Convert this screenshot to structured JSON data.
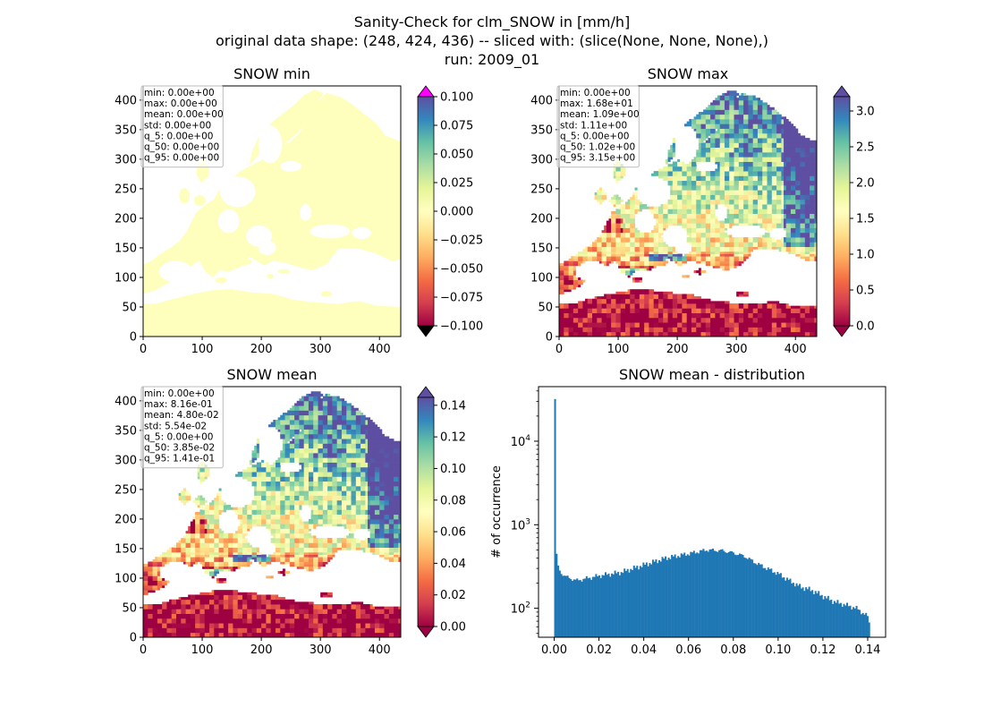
{
  "figure": {
    "title_lines": [
      "Sanity-Check for clm_SNOW in [mm/h]",
      "original data shape: (248, 424, 436) -- sliced with: (slice(None, None, None),)",
      "run: 2009_01"
    ]
  },
  "colors": {
    "land_pale": "#fefebd",
    "histogram_bar": "#1f77b4",
    "over_arrow_min": "#ff00ff",
    "under_arrow": "#000000",
    "spectral_low": "#9e0142",
    "spectral_high": "#5e4fa2"
  },
  "chart_data": [
    {
      "type": "heatmap",
      "title": "SNOW min",
      "colormap": "Spectral",
      "xlim": [
        0,
        436
      ],
      "ylim": [
        0,
        424
      ],
      "xticks": [
        0,
        100,
        200,
        300,
        400
      ],
      "yticks": [
        0,
        50,
        100,
        150,
        200,
        250,
        300,
        350,
        400
      ],
      "colorbar": {
        "range": [
          -0.1,
          0.1
        ],
        "ticks": [
          "0.100",
          "0.075",
          "0.050",
          "0.025",
          "0.000",
          "−0.025",
          "−0.050",
          "−0.075",
          "−0.100"
        ],
        "extend": "both"
      },
      "stats_box": [
        "min: 0.00e+00",
        "max: 0.00e+00",
        "mean: 0.00e+00",
        "std: 0.00e+00",
        "q_5: 0.00e+00",
        "q_50: 0.00e+00",
        "q_95: 0.00e+00"
      ],
      "field": "uniform_zero"
    },
    {
      "type": "heatmap",
      "title": "SNOW max",
      "colormap": "Spectral",
      "xlim": [
        0,
        436
      ],
      "ylim": [
        0,
        424
      ],
      "xticks": [
        0,
        100,
        200,
        300,
        400
      ],
      "yticks": [
        0,
        50,
        100,
        150,
        200,
        250,
        300,
        350,
        400
      ],
      "colorbar": {
        "range": [
          0,
          3.2
        ],
        "ticks": [
          "3.0",
          "2.5",
          "2.0",
          "1.5",
          "1.0",
          "0.5",
          "0.0"
        ],
        "tick_values": [
          3.0,
          2.5,
          2.0,
          1.5,
          1.0,
          0.5,
          0.0
        ],
        "extend": "both"
      },
      "stats_box": [
        "min: 0.00e+00",
        "max: 1.68e+01",
        "mean: 1.09e+00",
        "std: 1.11e+00",
        "q_5: 0.00e+00",
        "q_50: 1.02e+00",
        "q_95: 3.15e+00"
      ],
      "field": "snow_max"
    },
    {
      "type": "heatmap",
      "title": "SNOW mean",
      "colormap": "Spectral",
      "xlim": [
        0,
        436
      ],
      "ylim": [
        0,
        424
      ],
      "xticks": [
        0,
        100,
        200,
        300,
        400
      ],
      "yticks": [
        0,
        50,
        100,
        150,
        200,
        250,
        300,
        350,
        400
      ],
      "colorbar": {
        "range": [
          0,
          0.145
        ],
        "ticks": [
          "0.14",
          "0.12",
          "0.10",
          "0.08",
          "0.06",
          "0.04",
          "0.02",
          "0.00"
        ],
        "tick_values": [
          0.14,
          0.12,
          0.1,
          0.08,
          0.06,
          0.04,
          0.02,
          0.0
        ],
        "extend": "both"
      },
      "stats_box": [
        "min: 0.00e+00",
        "max: 8.16e-01",
        "mean: 4.80e-02",
        "std: 5.54e-02",
        "q_5: 0.00e+00",
        "q_50: 3.85e-02",
        "q_95: 1.41e-01"
      ],
      "field": "snow_mean"
    },
    {
      "type": "bar",
      "title": "SNOW mean - distribution",
      "ylabel": "# of occurrence",
      "yscale": "log",
      "xlim": [
        -0.007,
        0.148
      ],
      "ylim": [
        45,
        45000
      ],
      "xticks": [
        "0.00",
        "0.02",
        "0.04",
        "0.06",
        "0.08",
        "0.10",
        "0.12",
        "0.14"
      ],
      "yticks": [
        "10^2",
        "10^3",
        "10^4"
      ],
      "bins": {
        "start": 0.0,
        "end": 0.141,
        "count": 200
      },
      "anchors_x": [
        0.0,
        0.0007,
        0.0014,
        0.0028,
        0.005,
        0.01,
        0.02,
        0.03,
        0.04,
        0.05,
        0.06,
        0.068,
        0.075,
        0.08,
        0.085,
        0.09,
        0.095,
        0.1,
        0.105,
        0.11,
        0.115,
        0.12,
        0.125,
        0.13,
        0.135,
        0.14,
        0.141
      ],
      "anchors_count": [
        32000,
        580,
        330,
        270,
        240,
        215,
        245,
        270,
        330,
        400,
        450,
        500,
        490,
        460,
        420,
        350,
        300,
        260,
        215,
        180,
        165,
        140,
        120,
        110,
        100,
        80,
        60
      ]
    }
  ]
}
